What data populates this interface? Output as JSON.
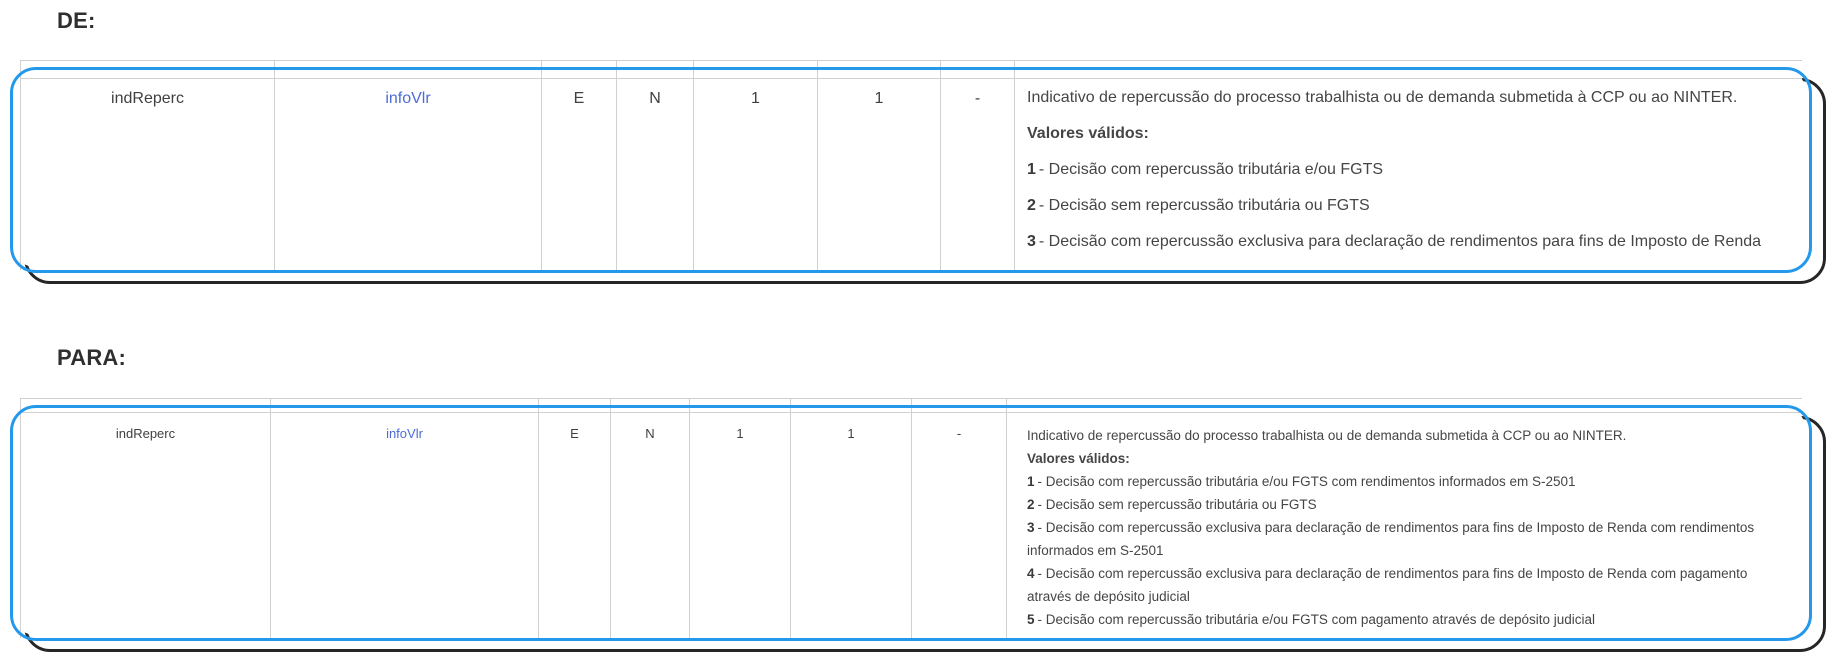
{
  "colors": {
    "highlight_border": "#2499EB",
    "shadow_border": "#262626",
    "grid_line": "#d0d0d0",
    "body_text": "#454545",
    "heading_text": "#2f2f2f",
    "link": "#4c6bd8"
  },
  "sections": [
    {
      "label": "DE:",
      "row": {
        "cells": [
          "indReperc",
          "infoVlr",
          "E",
          "N",
          "1",
          "1",
          "-"
        ],
        "description": {
          "intro": "Indicativo de repercussão do processo trabalhista ou de demanda submetida à CCP ou ao NINTER.",
          "valid_values_label": "Valores válidos:",
          "items": [
            {
              "num": "1",
              "text": "- Decisão com repercussão tributária e/ou FGTS"
            },
            {
              "num": "2",
              "text": "- Decisão sem repercussão tributária ou FGTS"
            },
            {
              "num": "3",
              "text": "- Decisão com repercussão exclusiva para declaração de rendimentos para fins de Imposto de Renda"
            }
          ]
        }
      }
    },
    {
      "label": "PARA:",
      "row": {
        "cells": [
          "indReperc",
          "infoVlr",
          "E",
          "N",
          "1",
          "1",
          "-"
        ],
        "description": {
          "intro": "Indicativo de repercussão do processo trabalhista ou de demanda submetida à CCP ou ao NINTER.",
          "valid_values_label": "Valores válidos:",
          "items": [
            {
              "num": "1",
              "text": "- Decisão com repercussão tributária e/ou FGTS com rendimentos informados em S-2501"
            },
            {
              "num": "2",
              "text": "- Decisão sem repercussão tributária ou FGTS"
            },
            {
              "num": "3",
              "text": "- Decisão com repercussão exclusiva para declaração de rendimentos para fins de Imposto de Renda com rendimentos informados em S-2501"
            },
            {
              "num": "4",
              "text": "- Decisão com repercussão exclusiva para declaração de rendimentos para fins de Imposto de Renda com pagamento através de depósito judicial"
            },
            {
              "num": "5",
              "text": "- Decisão com repercussão tributária e/ou FGTS com pagamento através de depósito judicial"
            }
          ]
        }
      }
    }
  ]
}
